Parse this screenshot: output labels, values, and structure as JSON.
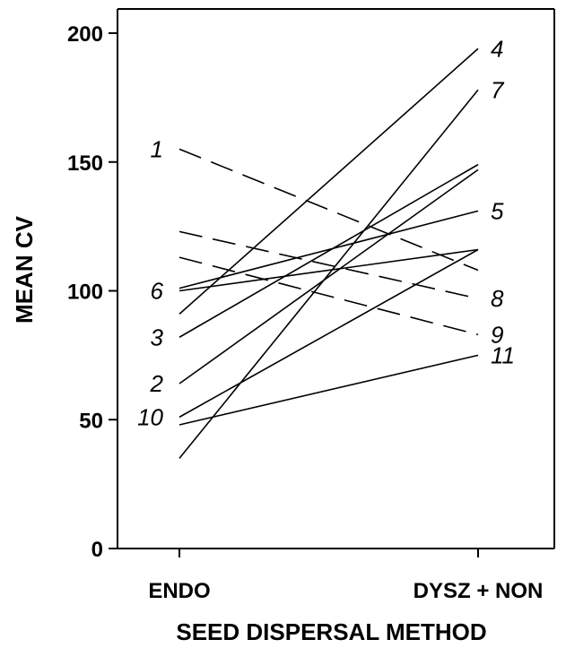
{
  "chart_data": {
    "type": "line",
    "title": "",
    "xlabel": "SEED DISPERSAL METHOD",
    "ylabel": "MEAN CV",
    "categories": [
      "ENDO",
      "DYSZ + NON"
    ],
    "ylim": [
      0,
      200
    ],
    "yticks": [
      0,
      50,
      100,
      150,
      200
    ],
    "grid": false,
    "legend": "none",
    "series": [
      {
        "name": "1",
        "values": [
          155,
          108
        ],
        "style": "dashed",
        "label_side": "left"
      },
      {
        "name": "2",
        "values": [
          64,
          147
        ],
        "style": "solid",
        "label_side": "left"
      },
      {
        "name": "3",
        "values": [
          82,
          149
        ],
        "style": "solid",
        "label_side": "left"
      },
      {
        "name": "4",
        "values": [
          91,
          194
        ],
        "style": "solid",
        "label_side": "right"
      },
      {
        "name": "5",
        "values": [
          101,
          131
        ],
        "style": "solid",
        "label_side": "right"
      },
      {
        "name": "6",
        "values": [
          100,
          116
        ],
        "style": "solid",
        "label_side": "left"
      },
      {
        "name": "7",
        "values": [
          35,
          178
        ],
        "style": "solid",
        "label_side": "right"
      },
      {
        "name": "8",
        "values": [
          123,
          97
        ],
        "style": "dashed",
        "label_side": "right"
      },
      {
        "name": "9",
        "values": [
          113,
          83
        ],
        "style": "dashed",
        "label_side": "right"
      },
      {
        "name": "10",
        "values": [
          51,
          116
        ],
        "style": "solid",
        "label_side": "left"
      },
      {
        "name": "11",
        "values": [
          48,
          75
        ],
        "style": "solid",
        "label_side": "right"
      }
    ]
  }
}
